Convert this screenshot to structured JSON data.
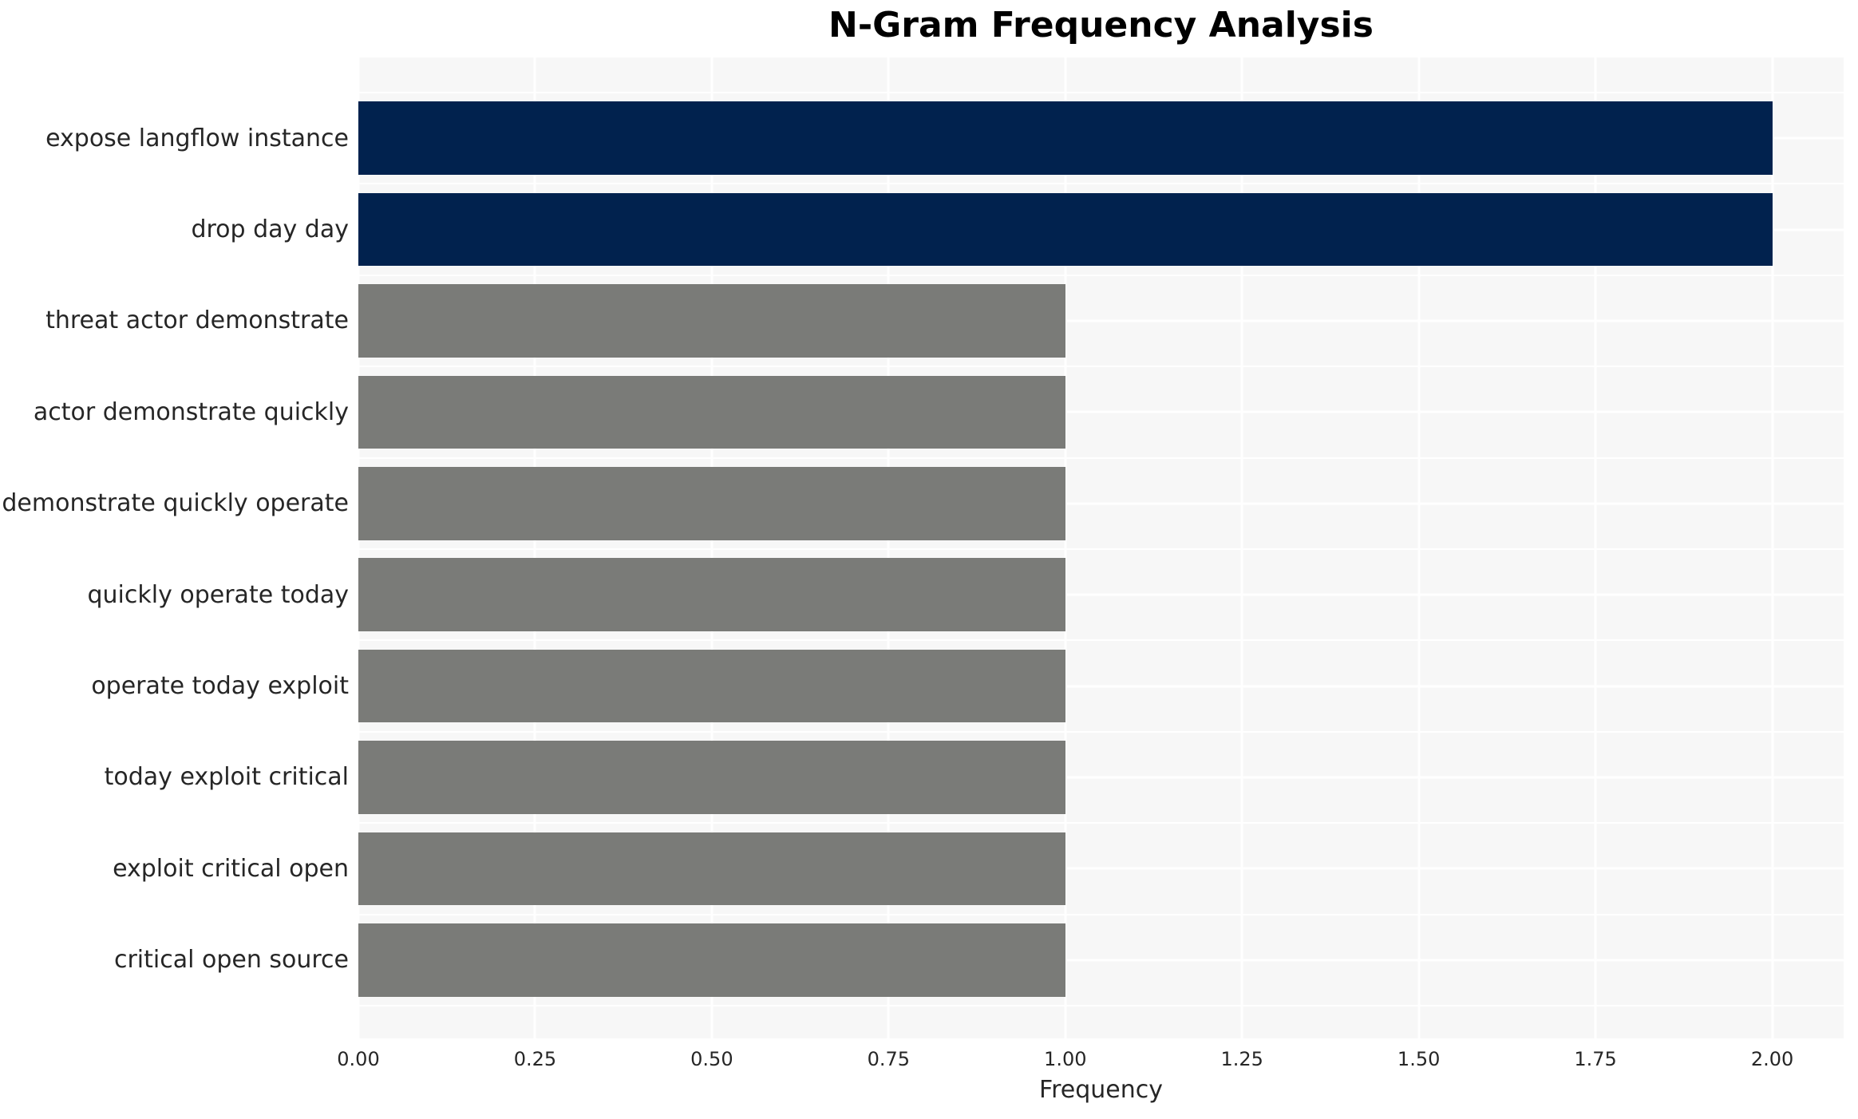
{
  "chart_data": {
    "type": "bar",
    "orientation": "horizontal",
    "title": "N-Gram Frequency Analysis",
    "xlabel": "Frequency",
    "ylabel": "",
    "categories": [
      "expose langflow instance",
      "drop day day",
      "threat actor demonstrate",
      "actor demonstrate quickly",
      "demonstrate quickly operate",
      "quickly operate today",
      "operate today exploit",
      "today exploit critical",
      "exploit critical open",
      "critical open source"
    ],
    "values": [
      2,
      2,
      1,
      1,
      1,
      1,
      1,
      1,
      1,
      1
    ],
    "bar_colors": [
      "#01224e",
      "#01224e",
      "#7a7b78",
      "#7a7b78",
      "#7a7b78",
      "#7a7b78",
      "#7a7b78",
      "#7a7b78",
      "#7a7b78",
      "#7a7b78"
    ],
    "xlim": [
      0,
      2.101
    ],
    "xtick_labels": [
      "0.00",
      "0.25",
      "0.50",
      "0.75",
      "1.00",
      "1.25",
      "1.50",
      "1.75",
      "2.00"
    ],
    "xtick_values": [
      0,
      0.25,
      0.5,
      0.75,
      1.0,
      1.25,
      1.5,
      1.75,
      2.0
    ],
    "grid": "on",
    "legend": "none",
    "colors": {
      "high_bar": "#01224e",
      "low_bar": "#7a7b78",
      "panel_background": "#f7f7f7",
      "gridline": "#ffffff",
      "tick_text": "#262626",
      "title_text": "#000000"
    }
  }
}
